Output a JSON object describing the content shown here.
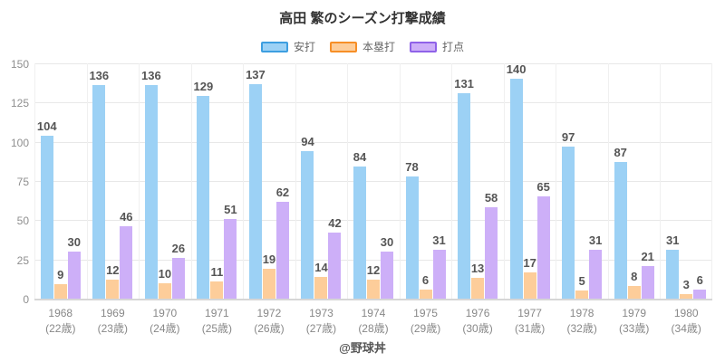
{
  "title": "高田 繁のシーズン打撃成績",
  "footer": "@野球丼",
  "legend": {
    "items": [
      {
        "label": "安打",
        "fill": "#9CD1F5",
        "border": "#3D9EE0"
      },
      {
        "label": "本塁打",
        "fill": "#FDCD9A",
        "border": "#F78F27"
      },
      {
        "label": "打点",
        "fill": "#CDAFF8",
        "border": "#8F62E8"
      }
    ]
  },
  "chart_data": {
    "type": "bar",
    "title": "高田 繁のシーズン打撃成績",
    "categories": [
      "1968",
      "1969",
      "1970",
      "1971",
      "1972",
      "1973",
      "1974",
      "1975",
      "1976",
      "1977",
      "1978",
      "1979",
      "1980"
    ],
    "category_sublabels": [
      "(22歳)",
      "(23歳)",
      "(24歳)",
      "(25歳)",
      "(26歳)",
      "(27歳)",
      "(28歳)",
      "(29歳)",
      "(30歳)",
      "(31歳)",
      "(32歳)",
      "(33歳)",
      "(34歳)"
    ],
    "series": [
      {
        "name": "安打",
        "fill": "#9CD1F5",
        "border": "#3D9EE0",
        "values": [
          104,
          136,
          136,
          129,
          137,
          94,
          84,
          78,
          131,
          140,
          97,
          87,
          31
        ]
      },
      {
        "name": "本塁打",
        "fill": "#FDCD9A",
        "border": "#F78F27",
        "values": [
          9,
          12,
          10,
          11,
          19,
          14,
          12,
          6,
          13,
          17,
          5,
          8,
          3
        ]
      },
      {
        "name": "打点",
        "fill": "#CDAFF8",
        "border": "#8F62E8",
        "values": [
          30,
          46,
          26,
          51,
          62,
          42,
          30,
          31,
          58,
          65,
          31,
          21,
          6
        ]
      }
    ],
    "ylim": [
      0,
      150
    ],
    "yticks": [
      0,
      25,
      50,
      75,
      100,
      125,
      150
    ],
    "grid": true,
    "legend_position": "top",
    "value_labels": true,
    "xlabel": "",
    "ylabel": ""
  }
}
